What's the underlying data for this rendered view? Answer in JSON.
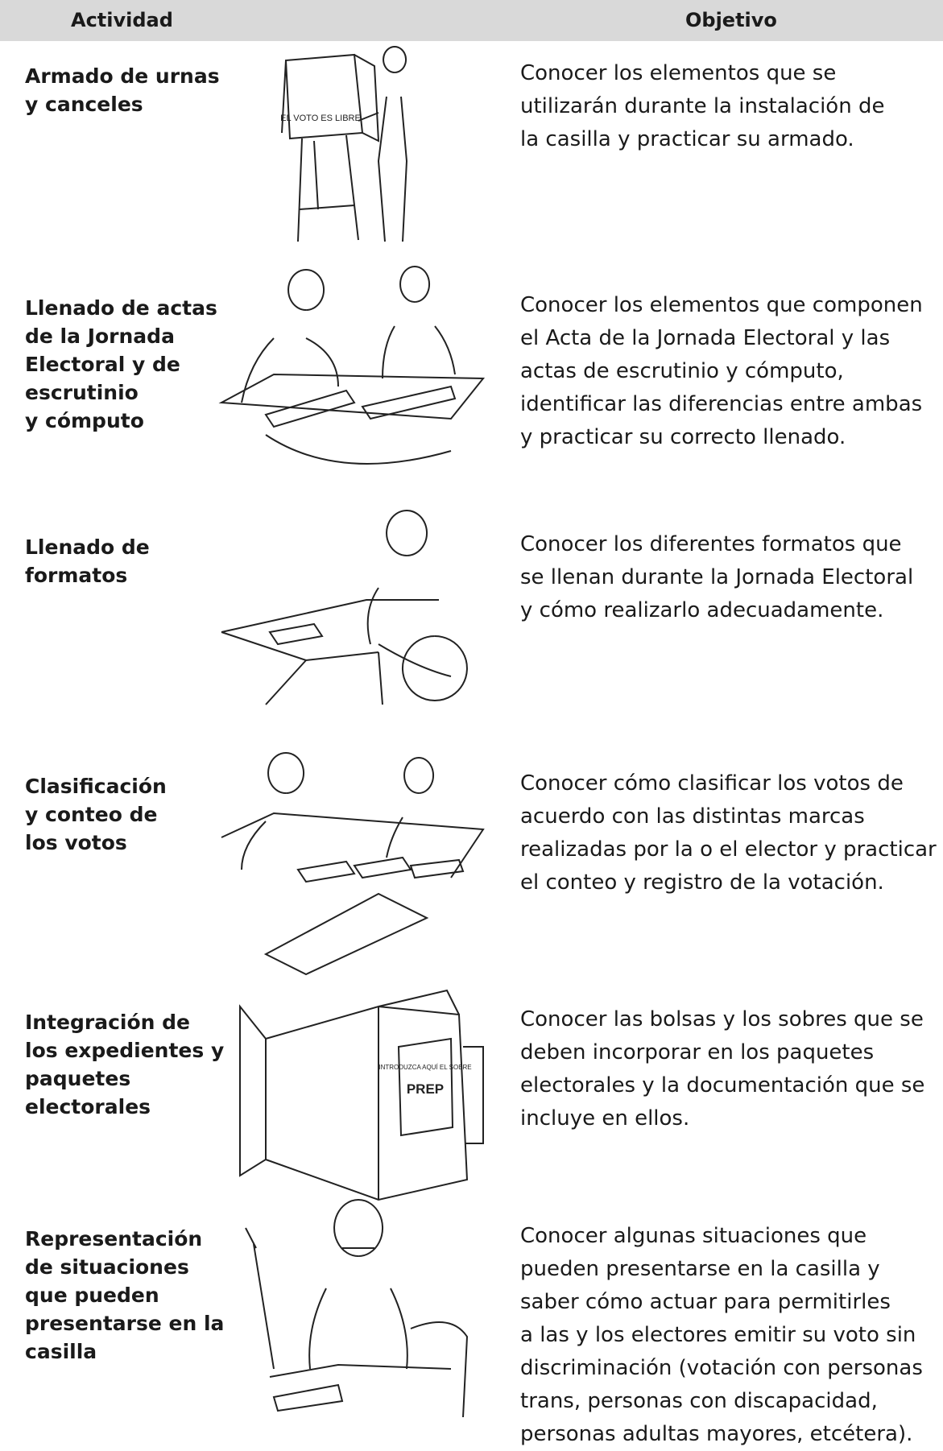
{
  "header": {
    "activity": "Actividad",
    "objective": "Objetivo"
  },
  "rows": [
    {
      "activity": [
        "Armado de urnas",
        "y canceles"
      ],
      "objective": [
        "Conocer los elementos que se",
        "utilizarán durante la instalación de",
        "la casilla y practicar su armado."
      ],
      "image_text": [
        "EL VOTO ES LIBRE"
      ]
    },
    {
      "activity": [
        "Llenado de actas",
        "de la Jornada",
        "Electoral y de",
        "escrutinio",
        "y cómputo"
      ],
      "objective": [
        "Conocer los elementos que componen",
        "el Acta de la Jornada Electoral y las",
        "actas de escrutinio y cómputo,",
        "identificar las diferencias entre ambas",
        "y practicar su correcto llenado."
      ]
    },
    {
      "activity": [
        "Llenado de",
        "formatos"
      ],
      "objective": [
        "Conocer los diferentes formatos que",
        "se llenan durante la Jornada Electoral",
        "y cómo realizarlo adecuadamente."
      ]
    },
    {
      "activity": [
        "Clasificación",
        "y conteo de",
        "los votos"
      ],
      "objective": [
        "Conocer cómo clasificar los votos de",
        "acuerdo con las distintas marcas",
        "realizadas por la o el elector y practicar",
        "el conteo y registro de la votación."
      ]
    },
    {
      "activity": [
        "Integración de",
        "los expedientes y",
        "paquetes",
        "electorales"
      ],
      "objective": [
        "Conocer las bolsas y los sobres que se",
        "deben incorporar en los paquetes",
        "electorales y la documentación que se",
        "incluye en ellos."
      ],
      "image_text": [
        "INTRODUZCA AQUÍ EL SOBRE",
        "PREP"
      ]
    },
    {
      "activity": [
        "Representación",
        "de situaciones",
        "que pueden",
        "presentarse en la",
        "casilla"
      ],
      "objective": [
        "Conocer algunas situaciones que",
        "pueden presentarse en la casilla y",
        "saber cómo actuar para permitirles",
        "a las y los electores emitir su voto sin",
        "discriminación (votación con personas",
        "trans, personas con discapacidad,",
        "personas adultas mayores, etcétera)."
      ]
    }
  ]
}
